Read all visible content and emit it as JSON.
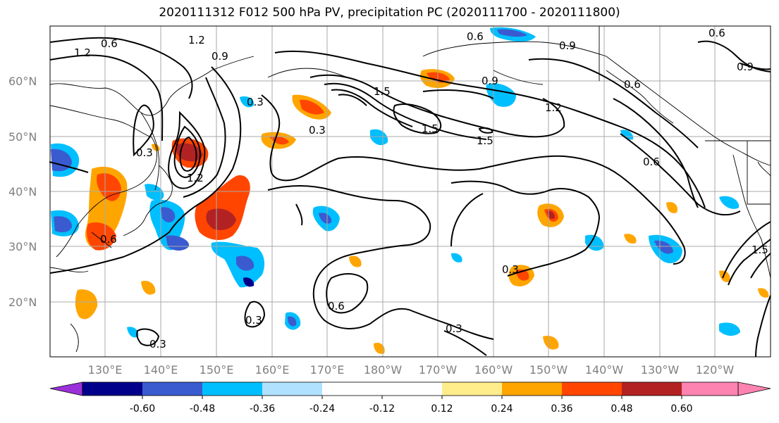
{
  "title": "2020111312 F012 500 hPa PV, precipitation PC (2020111700 - 2020111800)",
  "lat_labels": [
    "60°N",
    "50°N",
    "40°N",
    "30°N",
    "20°N"
  ],
  "lon_labels": [
    "130°E",
    "140°E",
    "150°E",
    "160°E",
    "170°E",
    "180°W",
    "170°W",
    "160°W",
    "150°W",
    "140°W",
    "130°W",
    "120°W"
  ],
  "contour_labels": [
    "0.6",
    "1.2",
    "0.9",
    "1.2",
    "0.3",
    "1.5",
    "1.5",
    "1.5",
    "1.2",
    "0.9",
    "0.6",
    "0.6",
    "0.9",
    "0.3",
    "0.6",
    "0.3",
    "0.6",
    "0.3",
    "0.6",
    "0.3",
    "0.3",
    "0.3",
    "0.6",
    "0.9",
    "1.2",
    "1.5"
  ],
  "colorbar": {
    "ticks": [
      "-0.60",
      "-0.48",
      "-0.36",
      "-0.24",
      "-0.12",
      "0.12",
      "0.24",
      "0.36",
      "0.48",
      "0.60"
    ],
    "colors": [
      "#9b30d9",
      "#00008b",
      "#3a5bd0",
      "#00bfff",
      "#b0e2ff",
      "#ffffff",
      "#ffec8b",
      "#ffa500",
      "#ff4500",
      "#b22222",
      "#ff83b0"
    ]
  },
  "legend_colors": {
    "neg_strong": "#3a5bd0",
    "neg_mid": "#00bfff",
    "pos_mid": "#ffa500",
    "pos_strong": "#ff4500",
    "pos_max": "#b22222"
  }
}
